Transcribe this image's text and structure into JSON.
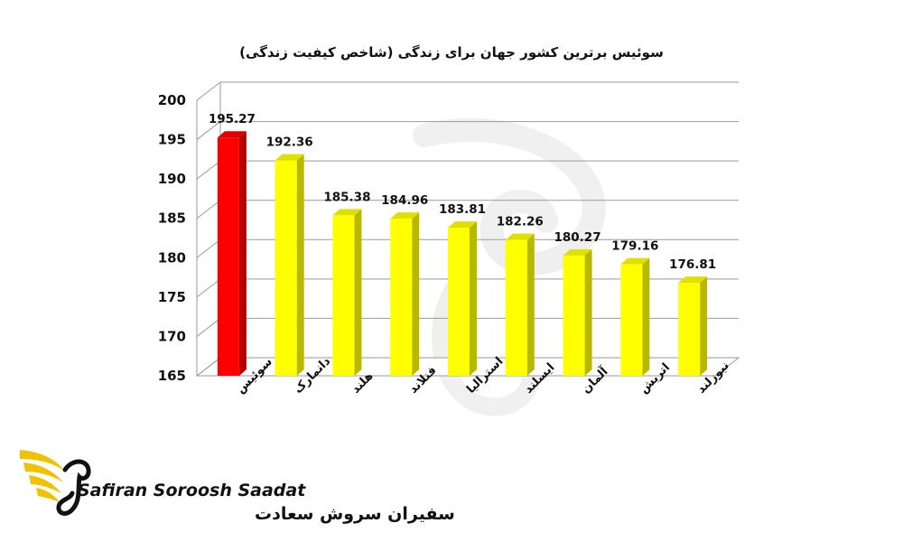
{
  "chart_data": {
    "type": "bar",
    "title": "سوئیس برترین کشور جهان برای زندگی (شاخص کیفیت زندگی)",
    "categories": [
      "سوئیس",
      "دانمارک",
      "هلند",
      "فنلاند",
      "استرالیا",
      "ایسلند",
      "آلمان",
      "اتریش",
      "نیوزلند"
    ],
    "values": [
      195.27,
      192.36,
      185.38,
      184.96,
      183.81,
      182.26,
      180.27,
      179.16,
      176.81
    ],
    "value_labels": [
      "195.27",
      "192.36",
      "185.38",
      "184.96",
      "183.81",
      "182.26",
      "180.27",
      "179.16",
      "176.81"
    ],
    "yticks": [
      "165",
      "170",
      "175",
      "180",
      "185",
      "190",
      "195",
      "200"
    ],
    "ylim": [
      165,
      200
    ],
    "grid": true,
    "legend": "none",
    "colors": {
      "highlight": "#ff0000",
      "bar": "#ffff00",
      "highlight_index": 0
    }
  },
  "logo": {
    "name_en": "Safiran Soroosh Saadat",
    "name_fa": "سفیران سروش سعادت"
  }
}
